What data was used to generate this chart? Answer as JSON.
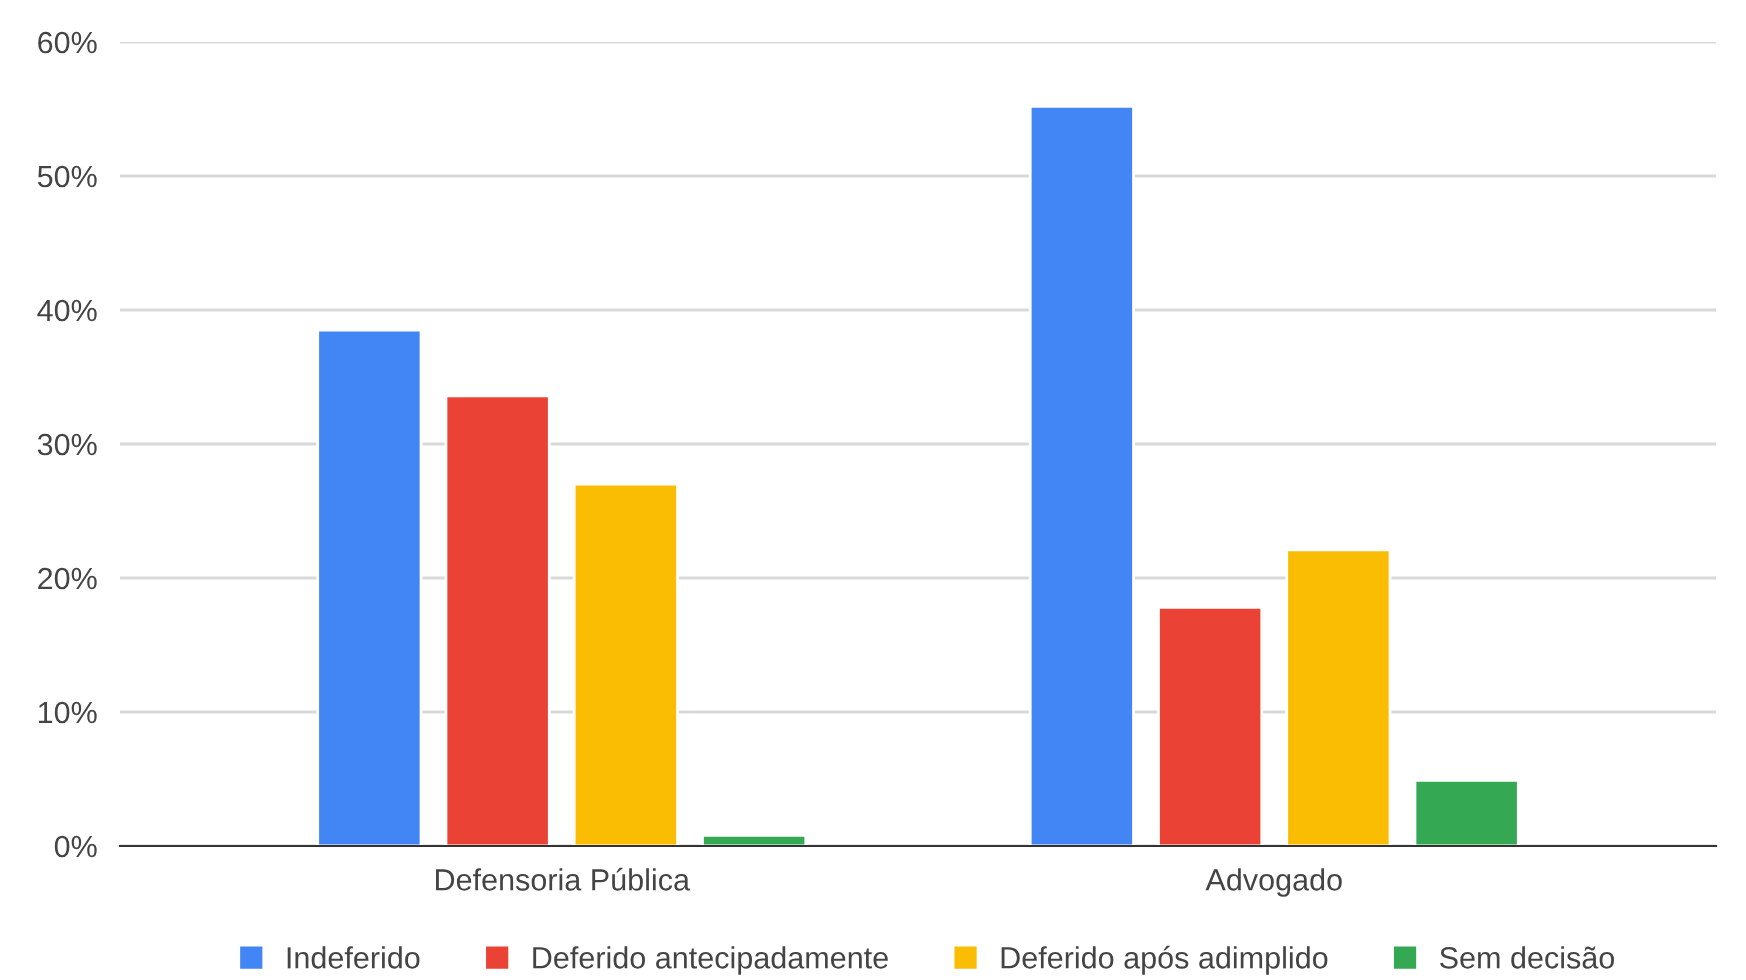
{
  "chart_data": {
    "type": "bar",
    "categories": [
      "Defensoria Pública",
      "Advogado"
    ],
    "series": [
      {
        "name": "Indeferido",
        "color": "#4285f4",
        "values": [
          38.5,
          55.2
        ]
      },
      {
        "name": "Deferido antecipadamente",
        "color": "#ea4335",
        "values": [
          33.6,
          17.8
        ]
      },
      {
        "name": "Deferido após adimplido",
        "color": "#fbbc04",
        "values": [
          27.0,
          22.1
        ]
      },
      {
        "name": "Sem decisão",
        "color": "#34a853",
        "values": [
          0.8,
          4.9
        ]
      }
    ],
    "ylim": [
      0,
      60
    ],
    "yticks": [
      {
        "value": 0,
        "label": "0%"
      },
      {
        "value": 10,
        "label": "10%"
      },
      {
        "value": 20,
        "label": "20%"
      },
      {
        "value": 30,
        "label": "30%"
      },
      {
        "value": 40,
        "label": "40%"
      },
      {
        "value": 50,
        "label": "50%"
      },
      {
        "value": 60,
        "label": "60%"
      }
    ],
    "grid": "y",
    "legend": "bottom"
  }
}
